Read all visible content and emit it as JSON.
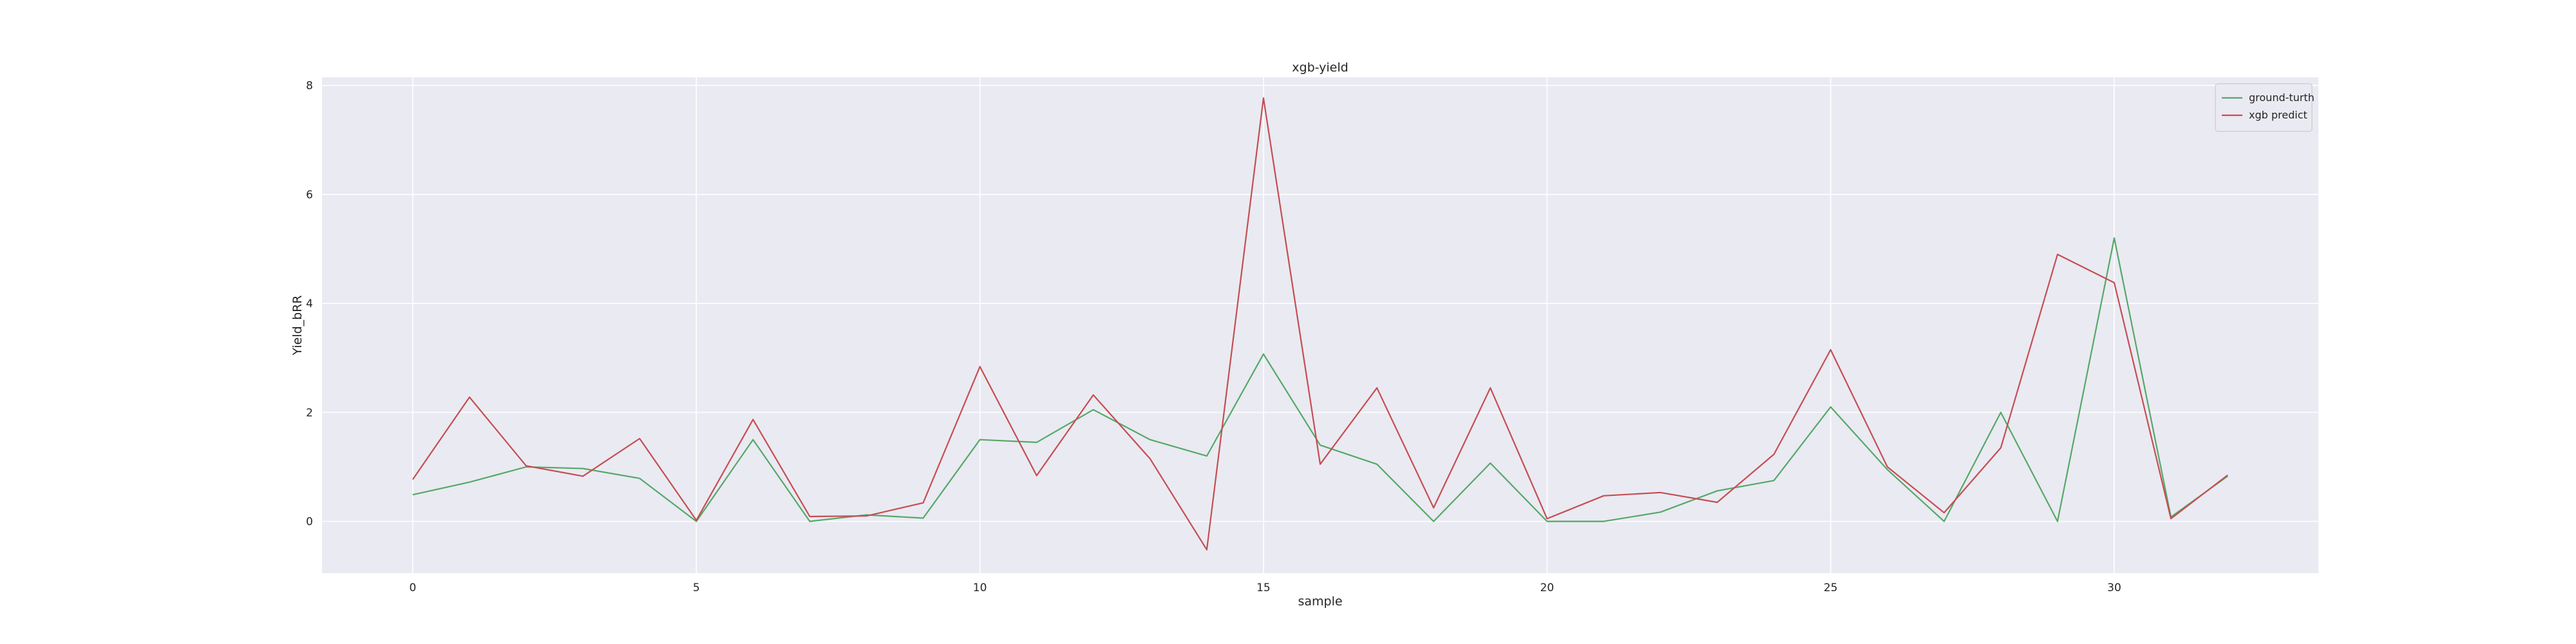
{
  "chart_data": {
    "type": "line",
    "title": "xgb-yield",
    "xlabel": "sample",
    "ylabel": "Yield_bRR",
    "xlim": [
      -1.6,
      33.6
    ],
    "ylim": [
      -0.95,
      8.15
    ],
    "xticks": [
      0,
      5,
      10,
      15,
      20,
      25,
      30
    ],
    "yticks": [
      0,
      2,
      4,
      6,
      8
    ],
    "grid": true,
    "legend_position": "top-right",
    "x": [
      0,
      1,
      2,
      3,
      4,
      5,
      6,
      7,
      8,
      9,
      10,
      11,
      12,
      13,
      14,
      15,
      16,
      17,
      18,
      19,
      20,
      21,
      22,
      23,
      24,
      25,
      26,
      27,
      28,
      29,
      30,
      31,
      32
    ],
    "series": [
      {
        "name": "ground-turth",
        "color": "#55a868",
        "values": [
          0.49,
          0.72,
          1.0,
          0.97,
          0.79,
          0.0,
          1.5,
          0.0,
          0.12,
          0.06,
          1.5,
          1.45,
          2.05,
          1.5,
          1.2,
          3.07,
          1.4,
          1.05,
          0.0,
          1.07,
          0.0,
          0.0,
          0.17,
          0.56,
          0.75,
          2.1,
          0.95,
          0.0,
          2.0,
          0.0,
          5.2,
          0.08,
          0.83
        ]
      },
      {
        "name": "xgb predict",
        "color": "#c44e52",
        "values": [
          0.77,
          2.28,
          1.02,
          0.83,
          1.52,
          0.02,
          1.87,
          0.09,
          0.1,
          0.34,
          2.84,
          0.84,
          2.32,
          1.15,
          -0.52,
          7.77,
          1.05,
          2.45,
          0.25,
          2.45,
          0.05,
          0.47,
          0.53,
          0.35,
          1.23,
          3.15,
          1.0,
          0.16,
          1.35,
          4.9,
          4.38,
          0.05,
          0.85
        ]
      }
    ]
  }
}
